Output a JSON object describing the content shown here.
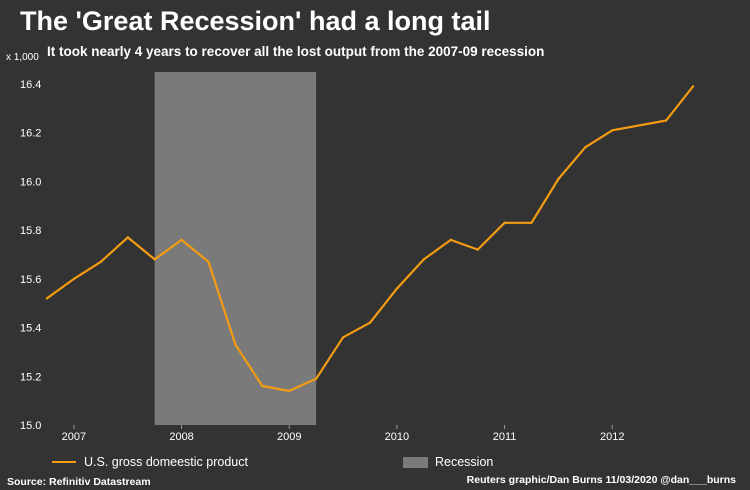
{
  "header": {
    "title": "The 'Great Recession' had a long tail",
    "subtitle": "It took nearly 4 years to recover all the lost output from the 2007-09 recession",
    "unit_label": "x 1,000"
  },
  "legend": {
    "series_label": "U.S. gross domeestic product",
    "recession_label": "Recession"
  },
  "footer": {
    "source": "Source: Refinitiv Datastream",
    "credit": "Reuters graphic/Dan Burns 11/03/2020 @dan___burns"
  },
  "colors": {
    "background": "#333333",
    "line": "#f39c12",
    "recession": "#7a7a7a",
    "text": "#ffffff"
  },
  "chart_data": {
    "type": "line",
    "title": "The 'Great Recession' had a long tail",
    "subtitle": "It took nearly 4 years to recover all the lost output from the 2007-09 recession",
    "ylabel": "x 1,000",
    "ylim": [
      15.0,
      16.4
    ],
    "yticks": [
      15.0,
      15.2,
      15.4,
      15.6,
      15.8,
      16.0,
      16.2,
      16.4
    ],
    "xlim": [
      2006.75,
      2012.75
    ],
    "xticks": [
      2007,
      2008,
      2009,
      2010,
      2011,
      2012
    ],
    "grid": false,
    "legend_position": "bottom",
    "recession": {
      "start": 2007.75,
      "end": 2009.25,
      "label": "Recession"
    },
    "series": [
      {
        "name": "U.S. gross domeestic product",
        "x": [
          2006.75,
          2007.0,
          2007.25,
          2007.5,
          2007.75,
          2008.0,
          2008.25,
          2008.5,
          2008.75,
          2009.0,
          2009.25,
          2009.5,
          2009.75,
          2010.0,
          2010.25,
          2010.5,
          2010.75,
          2011.0,
          2011.25,
          2011.5,
          2011.75,
          2012.0,
          2012.25,
          2012.5,
          2012.75
        ],
        "values": [
          15.52,
          15.6,
          15.67,
          15.77,
          15.68,
          15.76,
          15.67,
          15.33,
          15.16,
          15.14,
          15.19,
          15.36,
          15.42,
          15.56,
          15.68,
          15.76,
          15.72,
          15.83,
          15.83,
          16.01,
          16.14,
          16.21,
          16.23,
          16.25,
          16.39
        ]
      }
    ]
  }
}
